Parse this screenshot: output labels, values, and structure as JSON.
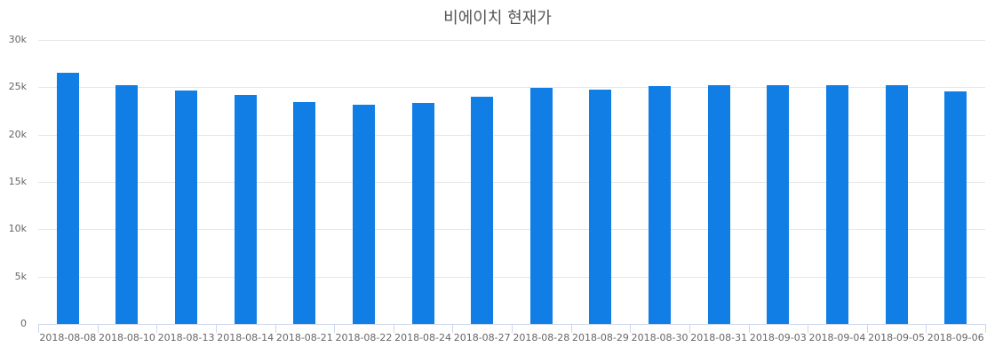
{
  "chart_data": {
    "type": "bar",
    "title": "비에이치 현재가",
    "xlabel": "",
    "ylabel": "",
    "ylim": [
      0,
      30000
    ],
    "yticks": [
      "0",
      "5k",
      "10k",
      "15k",
      "20k",
      "25k",
      "30k"
    ],
    "grid": true,
    "legend": "none",
    "color": "#107ee5",
    "categories": [
      "2018-08-08",
      "2018-08-10",
      "2018-08-13",
      "2018-08-14",
      "2018-08-21",
      "2018-08-22",
      "2018-08-24",
      "2018-08-27",
      "2018-08-28",
      "2018-08-29",
      "2018-08-30",
      "2018-08-31",
      "2018-09-03",
      "2018-09-04",
      "2018-09-05",
      "2018-09-06"
    ],
    "values": [
      26550,
      25250,
      24650,
      24200,
      23450,
      23150,
      23350,
      24000,
      24900,
      24750,
      25100,
      25200,
      25200,
      25200,
      25200,
      24550
    ]
  }
}
